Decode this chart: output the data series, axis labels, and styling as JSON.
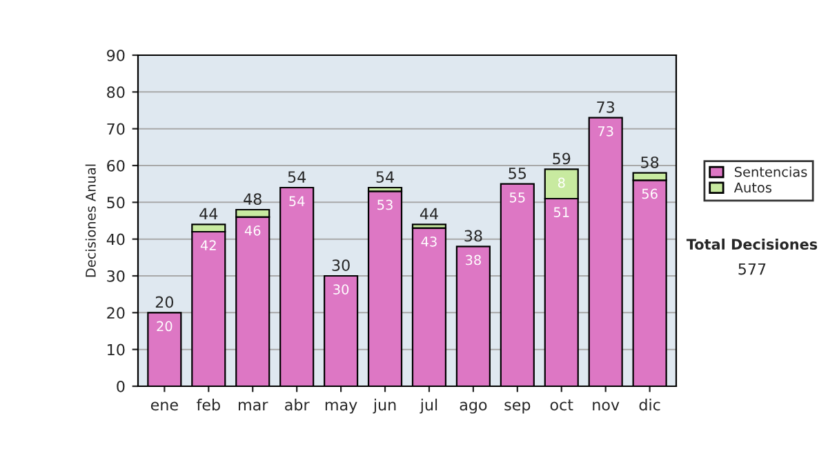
{
  "chart_data": {
    "type": "bar",
    "stacked": true,
    "ylabel": "Decisiones Anual",
    "categories": [
      "ene",
      "feb",
      "mar",
      "abr",
      "may",
      "jun",
      "jul",
      "ago",
      "sep",
      "oct",
      "nov",
      "dic"
    ],
    "series": [
      {
        "name": "Sentencias",
        "color": "#dd77c4",
        "values": [
          20,
          42,
          46,
          54,
          30,
          53,
          43,
          38,
          55,
          51,
          73,
          56
        ],
        "value_labels": [
          "20",
          "42",
          "46",
          "54",
          "30",
          "53",
          "43",
          "38",
          "55",
          "51",
          "73",
          "56"
        ]
      },
      {
        "name": "Autos",
        "color": "#c8eaa0",
        "values": [
          null,
          2,
          2,
          null,
          null,
          1,
          1,
          null,
          null,
          8,
          null,
          2
        ],
        "value_labels": [
          null,
          null,
          null,
          null,
          null,
          null,
          null,
          null,
          null,
          "8",
          null,
          null
        ]
      }
    ],
    "totals": [
      "20",
      "44",
      "48",
      "54",
      "30",
      "54",
      "44",
      "38",
      "55",
      "59",
      "73",
      "58"
    ],
    "ylim": [
      0,
      90
    ],
    "yticks": [
      0,
      10,
      20,
      30,
      40,
      50,
      60,
      70,
      80,
      90
    ],
    "grid": "y",
    "legend": "right",
    "annotations": [
      "Total Decisiones",
      "577"
    ]
  }
}
